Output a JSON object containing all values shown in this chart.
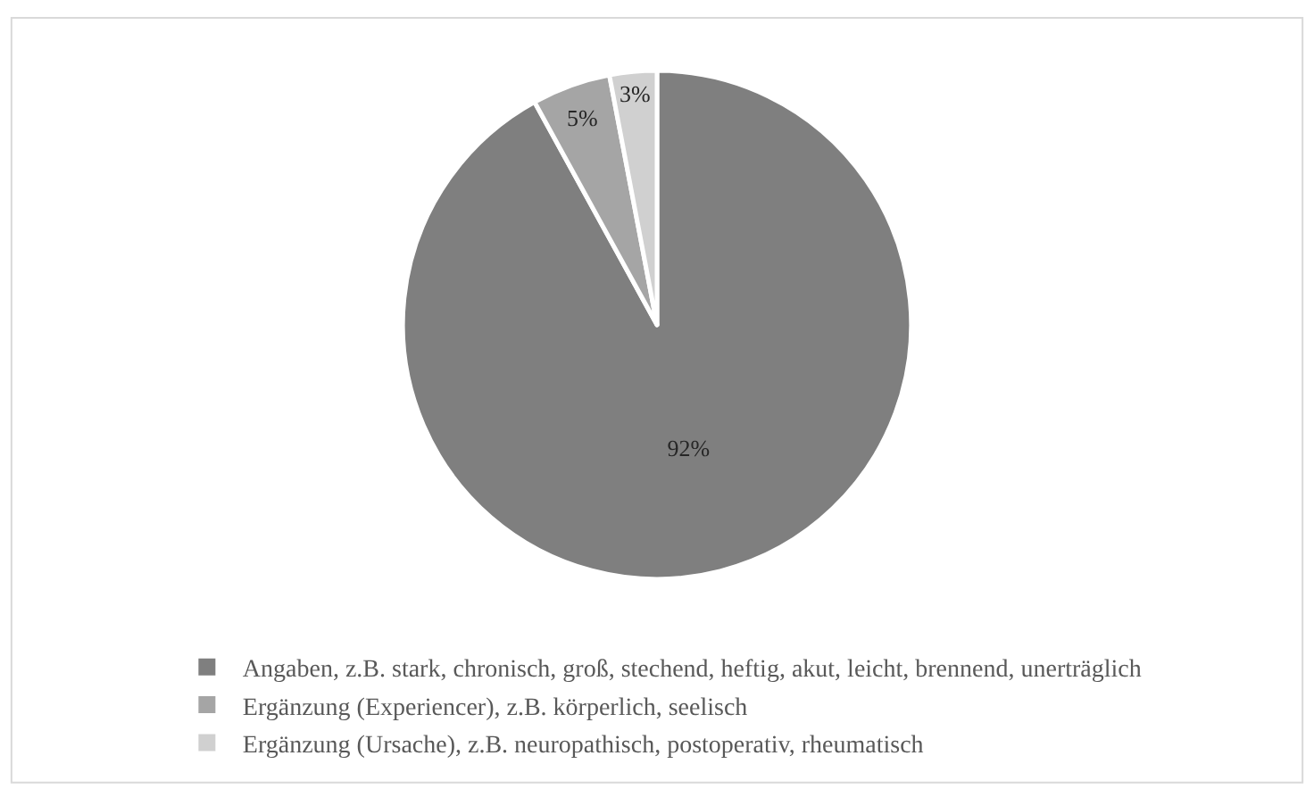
{
  "chart_data": {
    "type": "pie",
    "categories": [
      "Angaben, z.B. stark, chronisch, groß, stechend, heftig, akut, leicht, brennend, unerträglich",
      "Ergänzung (Experiencer), z.B. körperlich, seelisch",
      "Ergänzung (Ursache), z.B. neuropathisch, postoperativ, rheumatisch"
    ],
    "values": [
      92,
      5,
      3
    ],
    "value_labels": [
      "92%",
      "5%",
      "3%"
    ],
    "colors": [
      "#7f7f7f",
      "#a5a5a5",
      "#d0d0d0"
    ],
    "legend": "bottom"
  }
}
